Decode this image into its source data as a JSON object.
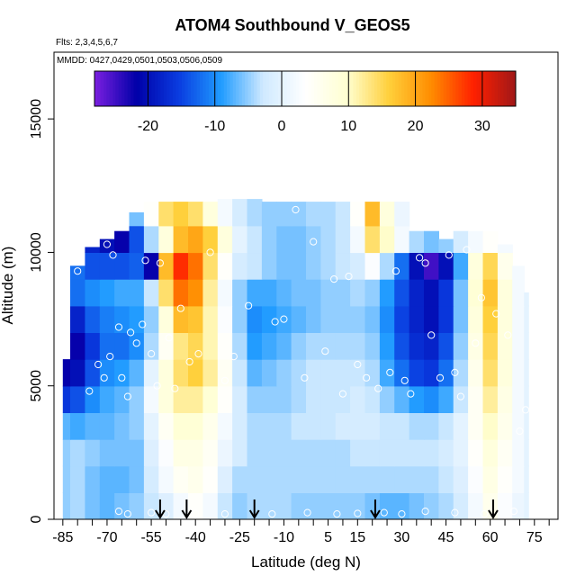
{
  "chart_data": {
    "type": "heatmap",
    "title": "ATOM4 Southbound V_GEOS5",
    "flights_note": "Flts: 2,3,4,5,6,7",
    "dates_note": "MMDD: 0427,0429,0501,0503,0506,0509",
    "xlabel": "Latitude (deg N)",
    "ylabel": "Altitude (m)",
    "xlim": [
      -88,
      83
    ],
    "ylim": [
      0,
      17500
    ],
    "x_ticks": [
      -85,
      -70,
      -55,
      -40,
      -25,
      -10,
      5,
      15,
      30,
      45,
      60,
      75
    ],
    "x_tick_labels": [
      "-85",
      "-70",
      "-55",
      "-40",
      "-25",
      "-10",
      "5",
      "15",
      "30",
      "45",
      "60",
      "75"
    ],
    "x_minor_ticks": [
      -80,
      -75,
      -65,
      -60,
      -50,
      -45,
      -35,
      -30,
      -20,
      -15,
      -5,
      0,
      10,
      20,
      25,
      35,
      40,
      50,
      55,
      65,
      70,
      80
    ],
    "y_ticks": [
      0,
      5000,
      10000,
      15000
    ],
    "y_tick_labels": [
      "0",
      "5000",
      "10000",
      "15000"
    ],
    "colorbar": {
      "vmin": -28,
      "vmax": 35,
      "ticks": [
        -20,
        -10,
        0,
        10,
        20,
        30
      ],
      "tick_labels": [
        "-20",
        "-10",
        "0",
        "10",
        "20",
        "30"
      ],
      "colors": [
        "#7b1fe0",
        "#0000a8",
        "#0a3ce0",
        "#1f9bff",
        "#cfe9ff",
        "#ffffff",
        "#ffffd0",
        "#ffcf3a",
        "#ff8c00",
        "#ff2000",
        "#a01818"
      ]
    },
    "profile_arrows_lat": [
      -52,
      -43,
      -20,
      21,
      61
    ],
    "altitude_boundary": {
      "lat": [
        -85,
        -80,
        -75,
        -70,
        -65,
        -60,
        -55,
        -50,
        -45,
        -40,
        -35,
        -30,
        -25,
        -20,
        -15,
        -10,
        -5,
        0,
        5,
        10,
        15,
        20,
        25,
        30,
        35,
        40,
        45,
        50,
        55,
        60,
        65,
        70,
        73
      ],
      "top_alt": [
        6000,
        9500,
        10200,
        10500,
        10800,
        11500,
        11900,
        11900,
        11900,
        11900,
        11900,
        12400,
        12400,
        12400,
        11900,
        11900,
        11900,
        11900,
        11900,
        11900,
        11900,
        11900,
        11900,
        11900,
        10800,
        10800,
        10500,
        10800,
        10800,
        10800,
        10300,
        9500,
        8500
      ]
    },
    "wind_grid": {
      "lat": [
        -85,
        -80,
        -75,
        -70,
        -65,
        -60,
        -55,
        -50,
        -45,
        -40,
        -35,
        -30,
        -25,
        -20,
        -15,
        -10,
        -5,
        0,
        5,
        10,
        15,
        20,
        25,
        30,
        35,
        40,
        45,
        50,
        55,
        60,
        65,
        70,
        73
      ],
      "alt": [
        500,
        1500,
        2500,
        3500,
        4500,
        5500,
        6500,
        7500,
        8500,
        9500,
        10500,
        11500
      ],
      "v": [
        [
          -5,
          -4,
          -6,
          -7,
          -6,
          -5,
          -3,
          -1,
          2,
          4,
          2,
          -3,
          -5,
          -4,
          -4,
          -4,
          -5,
          -5,
          -5,
          -5,
          -5,
          -6,
          -7,
          -7,
          -6,
          -5,
          -4,
          -2,
          2,
          6,
          3,
          1,
          0
        ],
        [
          -5,
          -4,
          -6,
          -7,
          -7,
          -6,
          -2,
          2,
          5,
          6,
          4,
          -1,
          -4,
          -4,
          -4,
          -4,
          -4,
          -4,
          -4,
          -4,
          -4,
          -4,
          -4,
          -4,
          -4,
          -4,
          -3,
          -1,
          3,
          7,
          4,
          2,
          0
        ],
        [
          -5,
          -4,
          -5,
          -6,
          -6,
          -6,
          -1,
          3,
          7,
          7,
          5,
          1,
          -2,
          -4,
          -4,
          -4,
          -4,
          -4,
          -4,
          -4,
          -3,
          -3,
          -3,
          -3,
          -3,
          -3,
          -2,
          0,
          4,
          8,
          5,
          2,
          0
        ],
        [
          -7,
          -8,
          -7,
          -7,
          -6,
          -5,
          0,
          5,
          9,
          9,
          6,
          2,
          -2,
          -4,
          -4,
          -4,
          -3,
          -3,
          -3,
          -2,
          -2,
          -2,
          -3,
          -3,
          -4,
          -4,
          -3,
          0,
          5,
          10,
          6,
          2,
          0
        ],
        [
          -16,
          -14,
          -10,
          -8,
          -7,
          -5,
          2,
          8,
          12,
          12,
          9,
          4,
          -2,
          -5,
          -5,
          -5,
          -4,
          -3,
          -3,
          -3,
          -2,
          -3,
          -5,
          -7,
          -9,
          -10,
          -8,
          -3,
          5,
          12,
          7,
          2,
          0
        ],
        [
          -22,
          -20,
          -14,
          -10,
          -9,
          -7,
          0,
          8,
          14,
          16,
          12,
          5,
          -3,
          -7,
          -6,
          -5,
          -4,
          -3,
          -3,
          -3,
          -3,
          -4,
          -8,
          -12,
          -15,
          -16,
          -12,
          -4,
          6,
          14,
          8,
          2,
          0
        ],
        [
          -24,
          -22,
          -16,
          -12,
          -12,
          -10,
          -4,
          5,
          13,
          15,
          11,
          4,
          -4,
          -9,
          -8,
          -7,
          -5,
          -4,
          -4,
          -4,
          -4,
          -5,
          -9,
          -14,
          -17,
          -18,
          -14,
          -5,
          7,
          15,
          8,
          2,
          0
        ],
        [
          -20,
          -18,
          -13,
          -11,
          -10,
          -9,
          -5,
          8,
          18,
          17,
          11,
          3,
          -5,
          -10,
          -9,
          -8,
          -7,
          -6,
          -5,
          -5,
          -5,
          -6,
          -10,
          -15,
          -18,
          -20,
          -16,
          -6,
          8,
          16,
          8,
          2,
          0
        ],
        [
          -12,
          -12,
          -10,
          -9,
          -8,
          -8,
          -3,
          14,
          24,
          22,
          12,
          2,
          -5,
          -8,
          -8,
          -7,
          -6,
          -6,
          -5,
          -5,
          -4,
          -5,
          -9,
          -14,
          -18,
          -20,
          -16,
          -6,
          9,
          17,
          8,
          2,
          0
        ],
        [
          -8,
          -12,
          -14,
          -14,
          -14,
          -13,
          -22,
          18,
          28,
          24,
          14,
          4,
          -2,
          -3,
          -5,
          -6,
          -6,
          -5,
          -4,
          -3,
          -2,
          3,
          -4,
          -12,
          -20,
          -25,
          -20,
          -8,
          8,
          15,
          6,
          2,
          0
        ],
        [
          -4,
          -10,
          -18,
          -20,
          -22,
          -14,
          -4,
          8,
          18,
          20,
          16,
          8,
          0,
          -3,
          -5,
          -6,
          -6,
          -5,
          -4,
          -3,
          2,
          14,
          10,
          2,
          -4,
          -6,
          -5,
          -2,
          2,
          4,
          2,
          1,
          0
        ],
        [
          -2,
          -4,
          -6,
          -8,
          -10,
          -6,
          4,
          14,
          16,
          14,
          8,
          2,
          -2,
          -4,
          -5,
          -5,
          -5,
          -4,
          -4,
          -3,
          4,
          18,
          8,
          1,
          -2,
          -2,
          -2,
          -1,
          0,
          1,
          1,
          0,
          0
        ]
      ]
    },
    "observations": [
      {
        "lat": -84,
        "alt": 6300
      },
      {
        "lat": -80,
        "alt": 9300
      },
      {
        "lat": -76,
        "alt": 4800
      },
      {
        "lat": -73,
        "alt": 5800
      },
      {
        "lat": -71,
        "alt": 5300
      },
      {
        "lat": -70,
        "alt": 10300
      },
      {
        "lat": -69,
        "alt": 6100
      },
      {
        "lat": -68,
        "alt": 9900
      },
      {
        "lat": -66,
        "alt": 7200
      },
      {
        "lat": -65,
        "alt": 5300
      },
      {
        "lat": -63,
        "alt": 4600
      },
      {
        "lat": -62,
        "alt": 7000
      },
      {
        "lat": -60,
        "alt": 6600
      },
      {
        "lat": -58,
        "alt": 7300
      },
      {
        "lat": -57,
        "alt": 9700
      },
      {
        "lat": -55,
        "alt": 6200
      },
      {
        "lat": -53,
        "alt": 5000
      },
      {
        "lat": -52,
        "alt": 9600
      },
      {
        "lat": -49,
        "alt": 6800
      },
      {
        "lat": -47,
        "alt": 4900
      },
      {
        "lat": -45,
        "alt": 7900
      },
      {
        "lat": -42,
        "alt": 5900
      },
      {
        "lat": -39,
        "alt": 6200
      },
      {
        "lat": -35,
        "alt": 10000
      },
      {
        "lat": -30,
        "alt": 5200
      },
      {
        "lat": -27,
        "alt": 6100
      },
      {
        "lat": -22,
        "alt": 8000
      },
      {
        "lat": -18,
        "alt": 12300
      },
      {
        "lat": -13,
        "alt": 7400
      },
      {
        "lat": -10,
        "alt": 7500
      },
      {
        "lat": -6,
        "alt": 11600
      },
      {
        "lat": -3,
        "alt": 5300
      },
      {
        "lat": 0,
        "alt": 10400
      },
      {
        "lat": 4,
        "alt": 6300
      },
      {
        "lat": 7,
        "alt": 9000
      },
      {
        "lat": 10,
        "alt": 4700
      },
      {
        "lat": 12,
        "alt": 9100
      },
      {
        "lat": 15,
        "alt": 5800
      },
      {
        "lat": 18,
        "alt": 5300
      },
      {
        "lat": 22,
        "alt": 4900
      },
      {
        "lat": 26,
        "alt": 5500
      },
      {
        "lat": 28,
        "alt": 9300
      },
      {
        "lat": 31,
        "alt": 5200
      },
      {
        "lat": 33,
        "alt": 4700
      },
      {
        "lat": 36,
        "alt": 9800
      },
      {
        "lat": 38,
        "alt": 9600
      },
      {
        "lat": 40,
        "alt": 6900
      },
      {
        "lat": 43,
        "alt": 5300
      },
      {
        "lat": 46,
        "alt": 9900
      },
      {
        "lat": 48,
        "alt": 5500
      },
      {
        "lat": 50,
        "alt": 4600
      },
      {
        "lat": 52,
        "alt": 10100
      },
      {
        "lat": 55,
        "alt": 6600
      },
      {
        "lat": 57,
        "alt": 8300
      },
      {
        "lat": 62,
        "alt": 7700
      },
      {
        "lat": 66,
        "alt": 6900
      },
      {
        "lat": 70,
        "alt": 3300
      },
      {
        "lat": 72,
        "alt": 4100
      },
      {
        "lat": -66,
        "alt": 300
      },
      {
        "lat": -63,
        "alt": 200
      },
      {
        "lat": -55,
        "alt": 250
      },
      {
        "lat": -50,
        "alt": 200
      },
      {
        "lat": -40,
        "alt": 220
      },
      {
        "lat": -30,
        "alt": 200
      },
      {
        "lat": -14,
        "alt": 200
      },
      {
        "lat": -2,
        "alt": 250
      },
      {
        "lat": 8,
        "alt": 200
      },
      {
        "lat": 15,
        "alt": 220
      },
      {
        "lat": 24,
        "alt": 250
      },
      {
        "lat": 30,
        "alt": 200
      },
      {
        "lat": 38,
        "alt": 300
      },
      {
        "lat": 48,
        "alt": 250
      },
      {
        "lat": 58,
        "alt": 200
      },
      {
        "lat": 68,
        "alt": 300
      }
    ]
  }
}
